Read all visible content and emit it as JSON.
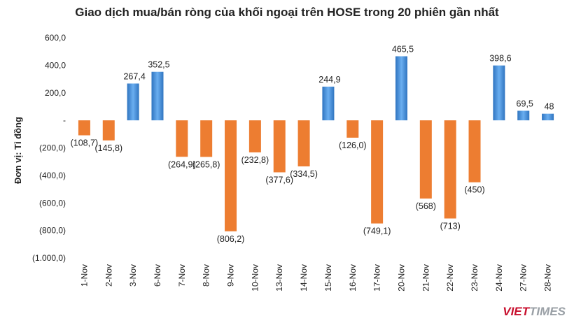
{
  "chart_data": {
    "type": "bar",
    "title": "Giao dịch mua/bán ròng của khối ngoại trên HOSE trong 20 phiên gần nhất",
    "ylabel": "Đơn vị: Tỉ đồng",
    "xlabel": "",
    "ylim": [
      -1000,
      600
    ],
    "yticks": [
      600,
      400,
      200,
      0,
      -200,
      -400,
      -600,
      -800,
      -1000
    ],
    "ytick_labels": [
      "600,0",
      "400,0",
      "200,0",
      "-",
      "(200,0)",
      "(400,0)",
      "(600,0)",
      "(800,0)",
      "(1.000,0)"
    ],
    "categories": [
      "1-Nov",
      "2-Nov",
      "3-Nov",
      "6-Nov",
      "7-Nov",
      "8-Nov",
      "9-Nov",
      "10-Nov",
      "13-Nov",
      "14-Nov",
      "15-Nov",
      "16-Nov",
      "17-Nov",
      "20-Nov",
      "21-Nov",
      "22-Nov",
      "23-Nov",
      "24-Nov",
      "27-Nov",
      "28-Nov"
    ],
    "values": [
      -108.7,
      -145.8,
      267.4,
      352.5,
      -264.9,
      -265.8,
      -806.2,
      -232.8,
      -377.6,
      -334.5,
      244.9,
      -126.0,
      -749.1,
      465.5,
      -568,
      -713,
      -450,
      398.6,
      69.5,
      48
    ],
    "labels": [
      "(108,7)",
      "(145,8)",
      "267,4",
      "352,5",
      "(264,9)",
      "(265,8)",
      "(806,2)",
      "(232,8)",
      "(377,6)",
      "(334,5)",
      "244,9",
      "(126,0)",
      "(749,1)",
      "465,5",
      "(568)",
      "(713)",
      "(450)",
      "398,6",
      "69,5",
      "48"
    ],
    "colors": {
      "positive": "#4a90d9",
      "negative": "#ed7d31"
    },
    "grid": false,
    "legend": "none"
  },
  "watermark": {
    "left": "VIET",
    "right": "TIMES"
  }
}
